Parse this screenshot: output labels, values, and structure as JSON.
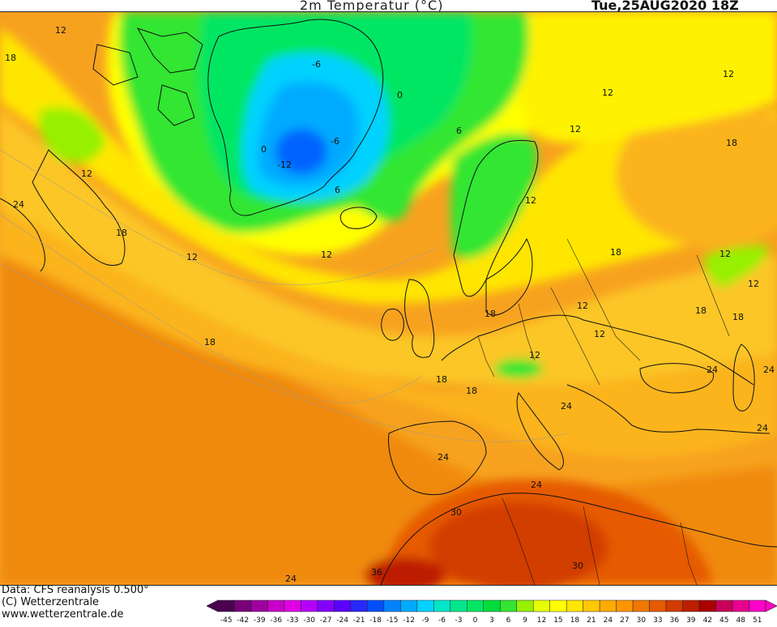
{
  "header": {
    "title": "2m Temperatur (°C)",
    "valid_time": "Tue,25AUG2020 18Z"
  },
  "credits": {
    "data_source": "Data: CFS reanalysis 0.500°",
    "copyright": "(C) Wetterzentrale",
    "website": "www.wetterzentrale.de"
  },
  "legend": {
    "ticks": [
      "-45",
      "-42",
      "-39",
      "-36",
      "-33",
      "-30",
      "-27",
      "-24",
      "-21",
      "-18",
      "-15",
      "-12",
      "-9",
      "-6",
      "-3",
      "0",
      "3",
      "6",
      "9",
      "12",
      "15",
      "18",
      "21",
      "24",
      "27",
      "30",
      "33",
      "36",
      "39",
      "42",
      "45",
      "48",
      "51"
    ],
    "colors": [
      "#4b0050",
      "#78007a",
      "#a0009f",
      "#c800c8",
      "#e100e6",
      "#b400ff",
      "#8200ff",
      "#5a00ff",
      "#2828ff",
      "#0050ff",
      "#0082ff",
      "#00aaff",
      "#00d2ff",
      "#00e6c8",
      "#00e68c",
      "#00e664",
      "#00dc3c",
      "#32e632",
      "#96f000",
      "#e6ff00",
      "#ffff00",
      "#ffe600",
      "#ffc800",
      "#ffaa00",
      "#ff9600",
      "#f07800",
      "#e65a00",
      "#d23c00",
      "#be1e00",
      "#aa0000",
      "#c8005a",
      "#e6008c",
      "#ff00c8"
    ]
  },
  "map": {
    "contour_labels": [
      {
        "text": "12",
        "id": "nw-canada"
      },
      {
        "text": "18",
        "id": "far-west"
      },
      {
        "text": "-6",
        "id": "greenland-north"
      },
      {
        "text": "0",
        "id": "greenland-east"
      },
      {
        "text": "6",
        "id": "norwegian-sea"
      },
      {
        "text": "-12",
        "id": "greenland-center"
      },
      {
        "text": "0",
        "id": "greenland-west"
      },
      {
        "text": "-6",
        "id": "greenland-se"
      },
      {
        "text": "6",
        "id": "greenland-south"
      },
      {
        "text": "12",
        "id": "labrador"
      },
      {
        "text": "24",
        "id": "us-coast"
      },
      {
        "text": "18",
        "id": "newfoundland"
      },
      {
        "text": "12",
        "id": "north-atlantic-w"
      },
      {
        "text": "12",
        "id": "north-atlantic-e"
      },
      {
        "text": "18",
        "id": "mid-atlantic"
      },
      {
        "text": "12",
        "id": "barents"
      },
      {
        "text": "12",
        "id": "kola"
      },
      {
        "text": "12",
        "id": "finland"
      },
      {
        "text": "12",
        "id": "ne-russia"
      },
      {
        "text": "18",
        "id": "west-siberia"
      },
      {
        "text": "12",
        "id": "baltic"
      },
      {
        "text": "18",
        "id": "russia-west"
      },
      {
        "text": "12",
        "id": "urals-1"
      },
      {
        "text": "12",
        "id": "urals-2"
      },
      {
        "text": "18",
        "id": "caspian-north"
      },
      {
        "text": "18",
        "id": "caspian-east"
      },
      {
        "text": "18",
        "id": "north-sea"
      },
      {
        "text": "12",
        "id": "germany"
      },
      {
        "text": "12",
        "id": "poland"
      },
      {
        "text": "18",
        "id": "biscay"
      },
      {
        "text": "18",
        "id": "france"
      },
      {
        "text": "24",
        "id": "italy"
      },
      {
        "text": "24",
        "id": "turkey"
      },
      {
        "text": "24",
        "id": "caspian"
      },
      {
        "text": "24",
        "id": "iran"
      },
      {
        "text": "24",
        "id": "iberia"
      },
      {
        "text": "24",
        "id": "mediterranean"
      },
      {
        "text": "30",
        "id": "algeria"
      },
      {
        "text": "30",
        "id": "libya"
      },
      {
        "text": "36",
        "id": "sahara"
      },
      {
        "text": "24",
        "id": "cape-verde"
      }
    ]
  }
}
